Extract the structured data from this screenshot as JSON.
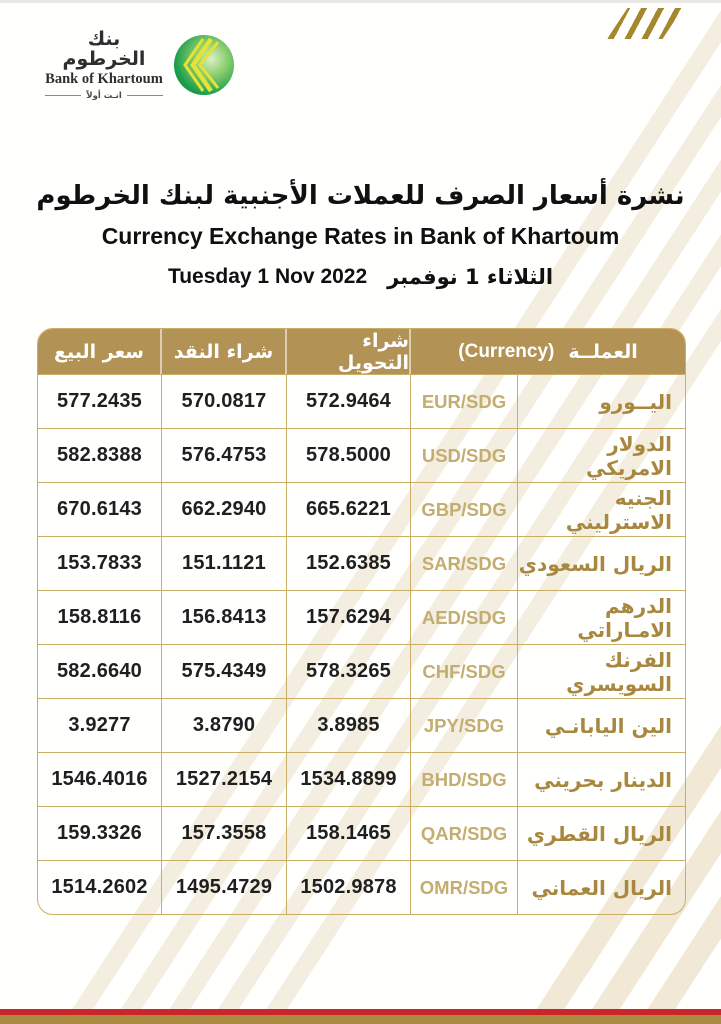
{
  "logo": {
    "name_arabic": "بنك الخرطوم",
    "name_english": "Bank of Khartoum",
    "tagline_arabic": "انـت أولاً"
  },
  "titles": {
    "arabic": "نشرة أسعار الصرف للعملات الأجنبية لبنك الخرطوم",
    "english": "Currency Exchange Rates in Bank of Khartoum",
    "date_english": "Tuesday 1 Nov  2022",
    "date_arabic": "الثلاثاء 1 نوفمبر"
  },
  "table": {
    "headers": {
      "sell": "سعر البيع",
      "cash_buy": "شراء النقد",
      "transfer_buy": "شراء التحويل",
      "currency_label_arabic": "العملــة",
      "currency_label_english": "(Currency)"
    },
    "rows": [
      {
        "name_ar": "اليــورو",
        "code": "EUR/SDG",
        "transfer_buy": "572.9464",
        "cash_buy": "570.0817",
        "sell": "577.2435"
      },
      {
        "name_ar": "الدولار الامريكي",
        "code": "USD/SDG",
        "transfer_buy": "578.5000",
        "cash_buy": "576.4753",
        "sell": "582.8388"
      },
      {
        "name_ar": "الجنيه الاسترليني",
        "code": "GBP/SDG",
        "transfer_buy": "665.6221",
        "cash_buy": "662.2940",
        "sell": "670.6143"
      },
      {
        "name_ar": "الريال السعودي",
        "code": "SAR/SDG",
        "transfer_buy": "152.6385",
        "cash_buy": "151.1121",
        "sell": "153.7833"
      },
      {
        "name_ar": "الدرهم الامـاراتي",
        "code": "AED/SDG",
        "transfer_buy": "157.6294",
        "cash_buy": "156.8413",
        "sell": "158.8116"
      },
      {
        "name_ar": "الفرنك السويسري",
        "code": "CHF/SDG",
        "transfer_buy": "578.3265",
        "cash_buy": "575.4349",
        "sell": "582.6640"
      },
      {
        "name_ar": "الين اليابانـي",
        "code": "JPY/SDG",
        "transfer_buy": "3.8985",
        "cash_buy": "3.8790",
        "sell": "3.9277"
      },
      {
        "name_ar": "الدينار بحريني",
        "code": "BHD/SDG",
        "transfer_buy": "1534.8899",
        "cash_buy": "1527.2154",
        "sell": "1546.4016"
      },
      {
        "name_ar": "الريال القطري",
        "code": "QAR/SDG",
        "transfer_buy": "158.1465",
        "cash_buy": "157.3558",
        "sell": "159.3326"
      },
      {
        "name_ar": "الريال العماني",
        "code": "OMR/SDG",
        "transfer_buy": "1502.9878",
        "cash_buy": "1495.4729",
        "sell": "1514.2602"
      }
    ]
  },
  "colors": {
    "header_gold": "#b39256",
    "border_gold": "#c9ae66",
    "code_text": "#c3ad70",
    "name_text": "#a8873f",
    "corner_gold": "#a5882e",
    "footer_red": "#c9252b",
    "footer_gold": "#a98c42",
    "logo_green": "#149b4a",
    "logo_yellow": "#e7e334"
  }
}
